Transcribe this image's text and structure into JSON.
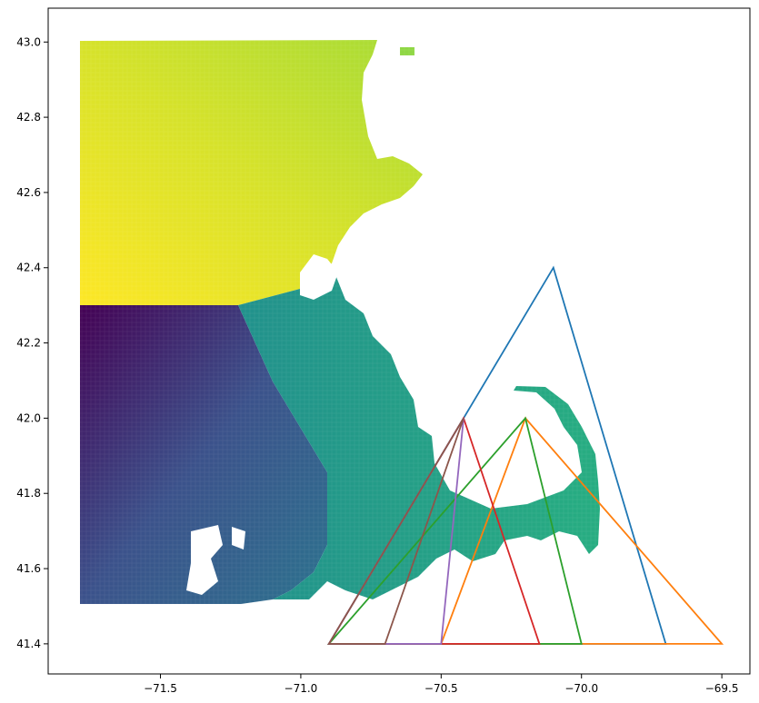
{
  "chart_data": {
    "type": "map",
    "title": "",
    "xlabel": "",
    "ylabel": "",
    "xlim": [
      -71.9,
      -69.4
    ],
    "ylim": [
      41.32,
      43.09
    ],
    "x_ticks": [
      {
        "value": -71.5,
        "label": "−71.5"
      },
      {
        "value": -71.0,
        "label": "−71.0"
      },
      {
        "value": -70.5,
        "label": "−70.5"
      },
      {
        "value": -70.0,
        "label": "−70.0"
      },
      {
        "value": -69.5,
        "label": "−69.5"
      }
    ],
    "y_ticks": [
      {
        "value": 41.4,
        "label": "41.4"
      },
      {
        "value": 41.6,
        "label": "41.6"
      },
      {
        "value": 41.8,
        "label": "41.8"
      },
      {
        "value": 42.0,
        "label": "42.0"
      },
      {
        "value": 42.2,
        "label": "42.2"
      },
      {
        "value": 42.4,
        "label": "42.4"
      },
      {
        "value": 42.6,
        "label": "42.6"
      },
      {
        "value": 42.8,
        "label": "42.8"
      },
      {
        "value": 43.0,
        "label": "43.0"
      }
    ],
    "raster": {
      "description": "gridded cells colored by angle around a central point (viridis colormap)",
      "center": [
        -71.23,
        42.3
      ],
      "colormap": "viridis"
    },
    "triangles": [
      {
        "color": "#1f77b4",
        "points": [
          [
            -70.9,
            41.4
          ],
          [
            -70.1,
            42.4
          ],
          [
            -69.7,
            41.4
          ]
        ]
      },
      {
        "color": "#ff7f0e",
        "points": [
          [
            -70.5,
            41.4
          ],
          [
            -70.2,
            42.0
          ],
          [
            -69.5,
            41.4
          ]
        ]
      },
      {
        "color": "#2ca02c",
        "points": [
          [
            -70.9,
            41.4
          ],
          [
            -70.2,
            42.0
          ],
          [
            -70.0,
            41.4
          ]
        ]
      },
      {
        "color": "#d62728",
        "points": [
          [
            -70.9,
            41.4
          ],
          [
            -70.42,
            42.0
          ],
          [
            -70.15,
            41.4
          ]
        ]
      },
      {
        "color": "#9467bd",
        "points": [
          [
            -70.9,
            41.4
          ],
          [
            -70.42,
            42.0
          ],
          [
            -70.5,
            41.4
          ]
        ]
      },
      {
        "color": "#8c564b",
        "points": [
          [
            -70.9,
            41.4
          ],
          [
            -70.42,
            42.0
          ],
          [
            -70.7,
            41.4
          ]
        ]
      }
    ]
  }
}
